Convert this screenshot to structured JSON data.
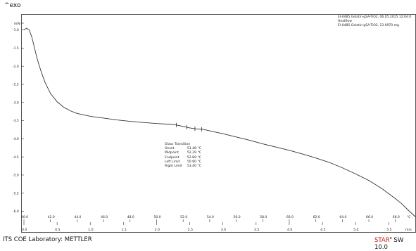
{
  "header": {
    "exo_label": "^exo"
  },
  "legend": {
    "lines": [
      "EI-0485 Gelatin-gSA-TiO2, 06.05.2015 12:04:0",
      "Heatflow",
      "EI-0485 Gelatin-gSA-TiO2, 13.0970 mg"
    ]
  },
  "annotation": {
    "title": "Glass Transition",
    "rows": [
      {
        "label": "Onset",
        "value": "51.48 °C"
      },
      {
        "label": "Midpoint",
        "value": "52.29 °C"
      },
      {
        "label": "Endpoint",
        "value": "52.89 °C"
      },
      {
        "label": "Left Limit",
        "value": "50.90 °C"
      },
      {
        "label": "Right Limit",
        "value": "53.40 °C"
      }
    ]
  },
  "footer": {
    "lab": "ITS COE Laboratory: METTLER",
    "star": "STAR",
    "reg": "e",
    "sw": " SW 10.0"
  },
  "chart_data": {
    "type": "line",
    "y_unit_label": "mW",
    "y_ticks": [
      -1.0,
      -1.5,
      -2.0,
      -2.5,
      -3.0,
      -3.5,
      -4.0,
      -4.5,
      -5.0,
      -5.5,
      -6.0
    ],
    "ylim": [
      -6.3,
      -0.6
    ],
    "x_temp_ticks": [
      40.0,
      42.0,
      44.0,
      46.0,
      48.0,
      50.0,
      52.0,
      54.0,
      56.0,
      58.0,
      60.0,
      62.0,
      64.0,
      66.0,
      68.0
    ],
    "x_temp_unit": "°C",
    "x_time_ticks": [
      0.0,
      0.5,
      1.0,
      1.5,
      2.0,
      2.5,
      3.0,
      3.5,
      4.0,
      4.5,
      5.0,
      5.5
    ],
    "x_time_unit": "min",
    "xlim_temp": [
      40.0,
      69.5
    ],
    "series": [
      {
        "x": [
          40.0,
          40.2,
          40.4,
          40.6,
          40.8,
          41.0,
          41.3,
          41.6,
          42.0,
          42.5,
          43.0,
          43.5,
          44.0,
          45.0,
          46.0,
          47.0,
          48.0,
          49.0,
          50.0,
          51.0,
          51.5,
          52.0,
          52.5,
          53.0,
          53.5,
          54.0,
          55.0,
          56.0,
          57.0,
          58.0,
          59.0,
          60.0,
          61.0,
          62.0,
          63.0,
          64.0,
          65.0,
          66.0,
          67.0,
          68.0,
          68.5,
          69.0,
          69.5
        ],
        "y": [
          -1.0,
          -0.95,
          -1.0,
          -1.2,
          -1.5,
          -1.8,
          -2.15,
          -2.45,
          -2.75,
          -2.98,
          -3.13,
          -3.23,
          -3.3,
          -3.38,
          -3.43,
          -3.48,
          -3.52,
          -3.55,
          -3.58,
          -3.6,
          -3.62,
          -3.66,
          -3.7,
          -3.73,
          -3.74,
          -3.78,
          -3.86,
          -3.95,
          -4.04,
          -4.14,
          -4.23,
          -4.32,
          -4.42,
          -4.53,
          -4.65,
          -4.8,
          -4.97,
          -5.15,
          -5.38,
          -5.65,
          -5.8,
          -5.98,
          -6.15
        ]
      }
    ],
    "markers_x": [
      51.48,
      52.29,
      52.89,
      53.4
    ]
  }
}
